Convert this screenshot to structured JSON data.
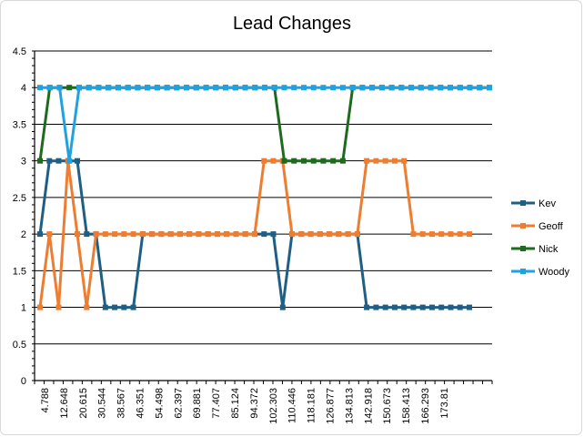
{
  "chart_data": {
    "type": "line",
    "title": "Lead Changes",
    "xlabel": "",
    "ylabel": "",
    "ylim": [
      0,
      4.5
    ],
    "y_ticks": [
      "0",
      "0.5",
      "1",
      "1.5",
      "2",
      "2.5",
      "3",
      "3.5",
      "4",
      "4.5"
    ],
    "x_tick_labels": [
      "4.788",
      "12.648",
      "20.615",
      "30.544",
      "38.567",
      "46.351",
      "54.498",
      "62.397",
      "69.881",
      "77.407",
      "85.124",
      "94.372",
      "102.303",
      "110.446",
      "118.181",
      "126.877",
      "134.813",
      "142.918",
      "150.673",
      "158.413",
      "166.293",
      "173.81"
    ],
    "grid": true,
    "legend_position": "right",
    "series": [
      {
        "name": "Kev",
        "color": "#1f5f85",
        "values": [
          2,
          3,
          3,
          3,
          3,
          3,
          2,
          2,
          1,
          1,
          1,
          1,
          2,
          2,
          2,
          2,
          2,
          2,
          2,
          2,
          2,
          2,
          2,
          2,
          2,
          2,
          2,
          2,
          2,
          2,
          2,
          2,
          2,
          2,
          2,
          2,
          2,
          2,
          2,
          2,
          2,
          2,
          2,
          2,
          2,
          2,
          2,
          2,
          2,
          2,
          2,
          2,
          2,
          2,
          2,
          2,
          2,
          2,
          2,
          2,
          2,
          1,
          2,
          2,
          2,
          2,
          2,
          2,
          2,
          2,
          2,
          2,
          2,
          2,
          2,
          2,
          2,
          2,
          2,
          2,
          2,
          2,
          2,
          2,
          2,
          2,
          2,
          2,
          2,
          2,
          2,
          2,
          2,
          2,
          2,
          2,
          2,
          2,
          2,
          2,
          2,
          2,
          2,
          2,
          2,
          2,
          2,
          2,
          2,
          2,
          2,
          2,
          2,
          2,
          2,
          2,
          2,
          2,
          2,
          2,
          2,
          2,
          2,
          2,
          2,
          2,
          2,
          2,
          2,
          2,
          2,
          2,
          2,
          2,
          2,
          2,
          2,
          2,
          2,
          2,
          2,
          2,
          2,
          2,
          2,
          2,
          2,
          2,
          2,
          2,
          2,
          2,
          2,
          2,
          2,
          2,
          2,
          2,
          2,
          2,
          2,
          2,
          2,
          2,
          2,
          2,
          2,
          2,
          2,
          2,
          2,
          2,
          2,
          2,
          2,
          2,
          2,
          2,
          2,
          2,
          2,
          2,
          2,
          2,
          2,
          2,
          2,
          2,
          2,
          2,
          2,
          2,
          2,
          2,
          2,
          2,
          2,
          2,
          2,
          2,
          2,
          2,
          2,
          2,
          2,
          2,
          2,
          2,
          2,
          2,
          2,
          2,
          2,
          2,
          2,
          2,
          2,
          2,
          2,
          2,
          2,
          2,
          2,
          2,
          2,
          2,
          2,
          2,
          2,
          2,
          2,
          2,
          2,
          2,
          2,
          2,
          2,
          2,
          2,
          2,
          2,
          2,
          2,
          2,
          2,
          2,
          2,
          2,
          2,
          2,
          2,
          2,
          2,
          2,
          2,
          2,
          2,
          2,
          2,
          2,
          2,
          2,
          2,
          2,
          2,
          2,
          2,
          2,
          2,
          2,
          2,
          2,
          2,
          2,
          2,
          2,
          2,
          2,
          2,
          2,
          2,
          2,
          2,
          2,
          2,
          2,
          2,
          2,
          2,
          2,
          2,
          2,
          2,
          2,
          2,
          2,
          2,
          2,
          2,
          2,
          2,
          2,
          2
        ]
      },
      {
        "name": "Geoff",
        "color": "#ed7d31",
        "values": [
          1,
          2,
          1,
          3,
          2,
          1,
          2,
          2,
          2,
          2,
          2,
          2,
          2,
          2,
          2,
          2,
          2,
          2,
          2,
          2,
          2,
          2,
          2,
          2,
          2,
          2,
          2,
          2,
          2,
          2,
          2,
          2,
          2,
          2,
          2,
          2,
          2,
          2,
          2,
          2,
          2,
          2,
          2,
          2,
          2,
          2,
          2,
          2,
          2,
          2,
          2,
          2,
          2,
          2,
          2,
          2,
          2,
          2,
          2,
          2,
          3,
          3,
          3,
          2,
          2,
          2,
          2,
          2,
          2,
          3,
          3,
          3,
          3,
          3,
          2,
          2,
          2,
          2,
          2,
          2,
          2,
          2,
          2,
          2,
          2,
          2,
          2,
          2,
          2,
          2,
          2,
          2,
          2,
          2,
          2,
          2,
          2,
          2,
          2,
          2,
          2,
          2,
          2,
          2,
          2,
          2,
          2,
          2,
          2,
          2,
          2,
          2,
          2,
          2,
          2,
          2,
          2,
          2,
          2,
          2,
          2,
          2,
          2,
          2,
          2,
          2,
          2,
          2,
          2,
          2,
          2,
          2,
          2,
          2,
          2,
          2,
          2,
          2,
          2,
          2,
          2,
          2,
          2,
          2,
          2,
          2,
          2,
          2,
          2,
          2,
          2,
          2,
          2,
          2,
          2,
          2,
          2,
          2,
          2,
          2,
          2,
          2,
          2,
          2,
          2,
          2,
          2,
          2,
          2,
          2,
          2,
          2,
          2,
          2,
          2,
          2,
          2,
          2,
          2,
          2,
          2,
          2,
          2,
          2,
          2,
          2,
          2,
          2,
          2,
          2,
          2,
          2,
          2,
          2,
          2,
          2,
          2,
          2,
          2,
          2,
          2,
          2,
          2,
          2,
          2,
          2,
          2,
          2,
          2,
          2,
          2,
          2,
          2,
          2,
          2,
          2,
          2,
          2,
          2,
          2,
          2,
          2,
          2,
          2,
          2,
          2,
          2,
          2,
          2,
          2,
          2,
          2,
          2,
          2,
          2,
          2,
          2,
          2,
          2,
          2,
          2,
          2,
          2,
          2,
          2,
          2,
          2,
          2,
          2,
          2,
          2,
          2,
          2,
          2,
          2,
          2,
          2,
          2,
          2,
          2,
          2,
          2,
          2,
          2,
          2,
          2,
          2,
          2,
          2,
          2,
          2,
          2,
          2,
          2,
          2,
          2,
          2,
          2,
          2,
          2,
          2,
          2,
          2,
          2,
          2,
          2,
          2,
          2,
          2,
          2,
          2,
          2,
          2,
          2,
          2,
          2,
          2,
          2,
          2,
          2,
          2,
          2,
          2,
          2,
          2,
          2
        ]
      },
      {
        "name": "Nick",
        "color": "#1e6b1e",
        "values": [
          3,
          4,
          4,
          4,
          4,
          4,
          4,
          4,
          4,
          4,
          4,
          4,
          4,
          4,
          4,
          4,
          4,
          4,
          4,
          4,
          4,
          4,
          4,
          4,
          4,
          4,
          4,
          4,
          4,
          4,
          4,
          4,
          4,
          4,
          4,
          4,
          4,
          4,
          4,
          4,
          4,
          4,
          4,
          4,
          4,
          4,
          4,
          4,
          4,
          4,
          4,
          4,
          4,
          4,
          4,
          4,
          4,
          4,
          4,
          4,
          4,
          3,
          3,
          3,
          3,
          3,
          3,
          4,
          4,
          4,
          4,
          4,
          4,
          4,
          4,
          4,
          4,
          4,
          4,
          4,
          4,
          4,
          4,
          4,
          4,
          4,
          4,
          4,
          4,
          4,
          4,
          4,
          4,
          4,
          4,
          4,
          4,
          4,
          4,
          4,
          4,
          4,
          4,
          4,
          4,
          4,
          4,
          4,
          4,
          4,
          4,
          4,
          4,
          4,
          4,
          4,
          4,
          4,
          4,
          4,
          4,
          4,
          4,
          4,
          4,
          4,
          4,
          4,
          4,
          4,
          4,
          4,
          4,
          4,
          4,
          4,
          4,
          4,
          4,
          4,
          4,
          4,
          4,
          4,
          4,
          4,
          4,
          4,
          4,
          4,
          4,
          4,
          4,
          4,
          4,
          4,
          4,
          4,
          4,
          4,
          4,
          4,
          4,
          4,
          4,
          4,
          4,
          4,
          4,
          4,
          4,
          4,
          4,
          4,
          4,
          4,
          4,
          4,
          4,
          4,
          4,
          4,
          4,
          4,
          4,
          4,
          4,
          4,
          4,
          4,
          4,
          4,
          4,
          4,
          4,
          4,
          4,
          4,
          4,
          4,
          4,
          4,
          4,
          4,
          4,
          4,
          4,
          4,
          4,
          4,
          4,
          4,
          4,
          4,
          4,
          4,
          4,
          4,
          4,
          4,
          4,
          4,
          4,
          4,
          4,
          4,
          4,
          4,
          4,
          4,
          4,
          4,
          4,
          4,
          4,
          4,
          4,
          4,
          4,
          4,
          4,
          4,
          4,
          4,
          4,
          4,
          4,
          4,
          4,
          4,
          4,
          4,
          4,
          4,
          4,
          4,
          4,
          4,
          4,
          4,
          4,
          4,
          4,
          4,
          4,
          4,
          4,
          4,
          4,
          4,
          4,
          4,
          4,
          4,
          4,
          4,
          4,
          4,
          4,
          4,
          4,
          4,
          4,
          4,
          4,
          4,
          4,
          4,
          4,
          4,
          4,
          4,
          4,
          4,
          4,
          4,
          4,
          4,
          4,
          4
        ]
      },
      {
        "name": "Woody",
        "color": "#1fa3e0",
        "values": [
          4,
          4,
          4,
          3,
          4,
          4,
          4,
          4,
          4,
          4,
          4,
          4,
          4,
          4,
          4,
          4,
          4,
          4,
          4,
          4,
          4,
          4,
          4,
          4,
          4,
          4,
          4,
          4,
          4,
          4,
          4,
          4,
          4,
          4,
          4,
          4,
          4,
          4,
          4,
          4,
          4,
          4,
          4,
          4,
          4,
          4,
          4,
          4,
          4,
          4,
          4,
          4,
          4,
          4,
          4,
          4,
          4,
          4,
          4,
          4,
          4,
          4,
          4,
          4,
          4,
          4,
          4,
          4,
          4,
          4,
          4,
          4,
          4,
          4,
          4,
          4,
          4,
          4,
          4,
          4,
          4,
          4,
          4,
          4,
          4,
          4,
          4,
          4,
          4,
          4,
          4,
          4,
          4,
          4,
          4,
          4,
          4,
          4,
          4,
          4,
          4,
          4,
          4,
          4,
          4,
          4,
          4,
          4,
          4,
          4,
          4,
          4,
          4,
          4,
          4,
          4,
          4,
          4,
          4,
          4,
          4,
          4,
          4,
          4,
          4,
          4,
          4,
          4,
          4,
          4,
          4,
          4,
          4,
          4,
          4,
          4,
          4,
          4,
          4,
          4,
          4,
          4,
          4,
          4,
          4,
          4,
          4,
          4,
          4,
          4,
          4,
          4,
          4,
          4,
          4,
          4,
          4,
          4,
          4,
          4,
          4,
          4,
          4,
          4,
          4,
          4,
          4,
          4,
          4,
          4,
          4,
          4,
          4,
          4,
          4,
          4,
          4,
          4,
          4,
          4,
          4,
          4,
          4,
          4,
          4,
          4,
          4,
          4,
          4,
          4,
          4,
          4,
          4,
          4,
          4,
          4,
          4,
          4,
          4,
          4,
          4,
          4,
          4,
          4,
          4,
          4,
          4,
          4,
          4,
          4,
          4,
          4,
          4,
          4,
          4,
          4,
          4,
          4,
          4,
          4,
          4,
          4,
          4,
          4,
          4,
          4,
          4,
          4,
          4,
          4,
          4,
          4,
          4,
          4,
          4,
          4,
          4,
          4,
          4,
          4,
          4,
          4,
          4,
          4,
          4,
          4,
          4,
          4,
          4,
          4,
          4,
          4,
          4,
          4,
          4,
          4,
          4,
          4,
          4,
          4,
          4,
          4,
          4,
          4,
          4,
          4,
          4,
          4,
          4,
          4,
          4,
          4,
          4,
          4,
          4,
          4,
          4,
          4,
          4,
          4,
          4,
          4,
          4,
          4,
          4,
          4,
          4,
          4,
          4,
          4,
          4,
          4,
          4,
          4,
          4,
          4,
          4,
          4,
          4,
          4
        ]
      }
    ]
  }
}
